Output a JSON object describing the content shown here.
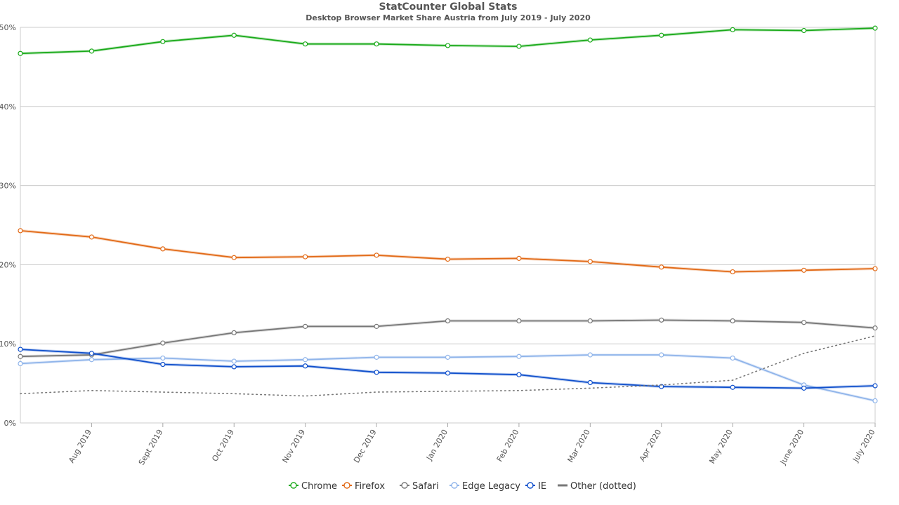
{
  "chart_data": {
    "type": "line",
    "title": "StatCounter Global Stats",
    "subtitle": "Desktop Browser Market Share Austria from July 2019 - July 2020",
    "categories": [
      "July 2019",
      "Aug 2019",
      "Sept 2019",
      "Oct 2019",
      "Nov 2019",
      "Dec 2019",
      "Jan 2020",
      "Feb 2020",
      "Mar 2020",
      "Apr 2020",
      "May 2020",
      "June 2020",
      "July 2020"
    ],
    "x_tick_labels": [
      "Aug 2019",
      "Sept 2019",
      "Oct 2019",
      "Nov 2019",
      "Dec 2019",
      "Jan 2020",
      "Feb 2020",
      "Mar 2020",
      "Apr 2020",
      "May 2020",
      "June 2020",
      "July 2020"
    ],
    "y_tick_labels": [
      "0%",
      "10%",
      "20%",
      "30%",
      "40%",
      "50%"
    ],
    "ylim": [
      0,
      50
    ],
    "grid": true,
    "legend_position": "bottom",
    "series": [
      {
        "name": "Chrome",
        "color": "#1aaa1a",
        "markers": true,
        "dotted": false,
        "values": [
          46.7,
          47.0,
          48.2,
          49.0,
          47.9,
          47.9,
          47.7,
          47.6,
          48.4,
          49.0,
          49.7,
          49.6,
          49.9
        ]
      },
      {
        "name": "Firefox",
        "color": "#e26a17",
        "markers": true,
        "dotted": false,
        "values": [
          24.3,
          23.5,
          22.0,
          20.9,
          21.0,
          21.2,
          20.7,
          20.8,
          20.4,
          19.7,
          19.1,
          19.3,
          19.5
        ]
      },
      {
        "name": "Safari",
        "color": "#777777",
        "markers": true,
        "dotted": false,
        "values": [
          8.4,
          8.6,
          10.1,
          11.4,
          12.2,
          12.2,
          12.9,
          12.9,
          12.9,
          13.0,
          12.9,
          12.7,
          12.0
        ]
      },
      {
        "name": "Edge Legacy",
        "color": "#8fb4ea",
        "markers": true,
        "dotted": false,
        "values": [
          7.5,
          8.0,
          8.2,
          7.8,
          8.0,
          8.3,
          8.3,
          8.4,
          8.6,
          8.6,
          8.2,
          4.8,
          2.8
        ]
      },
      {
        "name": "IE",
        "color": "#1050cc",
        "markers": true,
        "dotted": false,
        "values": [
          9.3,
          8.8,
          7.4,
          7.1,
          7.2,
          6.4,
          6.3,
          6.1,
          5.1,
          4.6,
          4.5,
          4.4,
          4.7
        ]
      },
      {
        "name": "Other (dotted)",
        "color": "#777777",
        "markers": false,
        "dotted": true,
        "values": [
          3.7,
          4.1,
          3.9,
          3.7,
          3.4,
          3.9,
          4.0,
          4.1,
          4.4,
          4.8,
          5.4,
          8.8,
          11.0
        ]
      }
    ]
  }
}
